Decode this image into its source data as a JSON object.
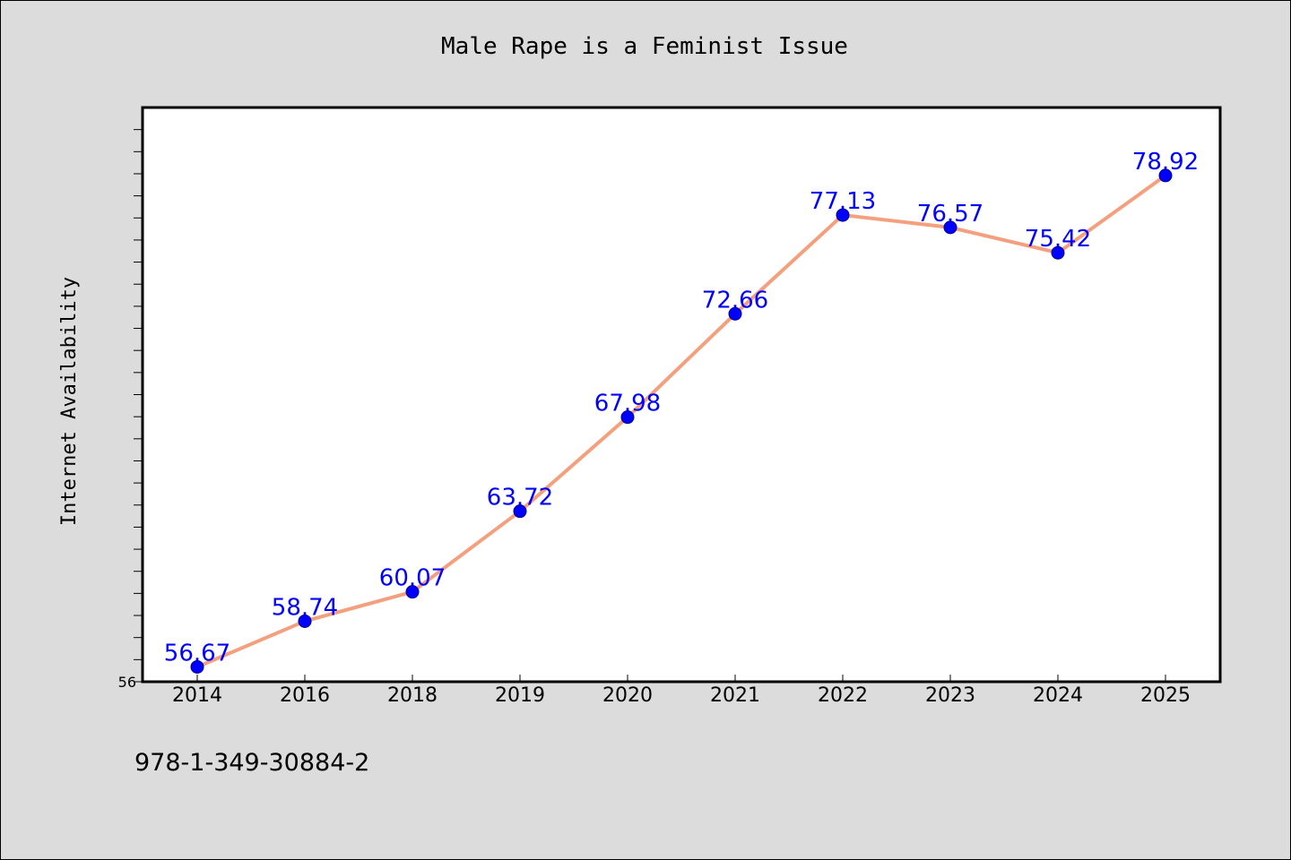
{
  "chart_data": {
    "type": "line",
    "title": "Male Rape is a Feminist Issue",
    "xlabel": "",
    "ylabel": "Internet Availability",
    "categories": [
      "2014",
      "2016",
      "2018",
      "2019",
      "2020",
      "2021",
      "2022",
      "2023",
      "2024",
      "2025"
    ],
    "series": [
      {
        "values": [
          56.67,
          58.74,
          60.07,
          63.72,
          67.98,
          72.66,
          77.13,
          76.57,
          75.42,
          78.92
        ]
      }
    ],
    "data_labels": [
      "56.67",
      "58.74",
      "60.07",
      "63.72",
      "67.98",
      "72.66",
      "77.13",
      "76.57",
      "75.42",
      "78.92"
    ],
    "ylim": [
      56,
      82
    ],
    "y_tick_labels": [
      "56"
    ],
    "grid": false,
    "legend": "none",
    "colors": {
      "line": "#f4a07e",
      "marker": "#0000ff",
      "label": "#0000ff",
      "background": "#dcdcdc",
      "plot_background": "#ffffff"
    }
  },
  "footer": {
    "isbn": "978-1-349-30884-2"
  }
}
